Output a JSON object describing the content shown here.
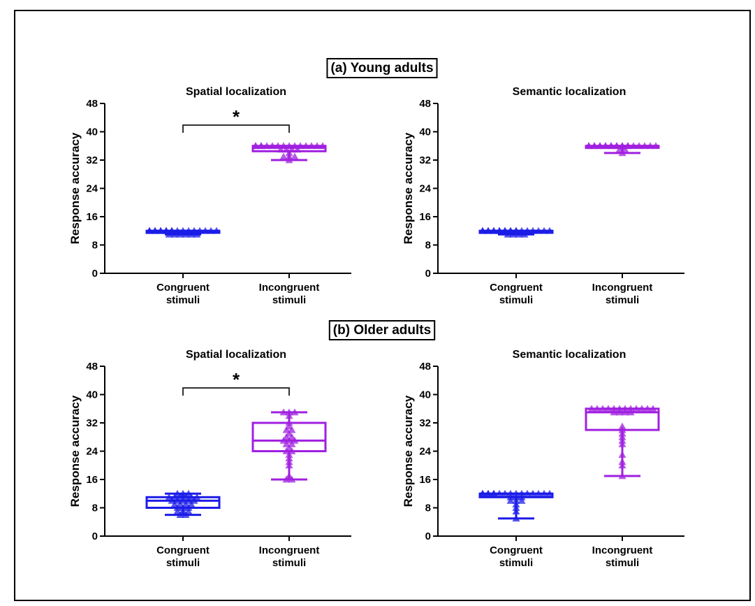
{
  "colors": {
    "congruent": "#1c1ce8",
    "incongruent": "#a020e0",
    "axis": "#000000",
    "bracket": "#333333"
  },
  "sections": [
    {
      "label": "(a) Young adults"
    },
    {
      "label": "(b) Older adults"
    }
  ],
  "chart_data": [
    {
      "type": "box",
      "section": "(a) Young adults",
      "title": "Spatial localization",
      "ylabel": "Response accuracy",
      "ylim": [
        0,
        48
      ],
      "yticks": [
        "0",
        "8",
        "16",
        "24",
        "32",
        "40",
        "48"
      ],
      "categories": [
        [
          "Congruent",
          "stimuli"
        ],
        [
          "Incongruent",
          "stimuli"
        ]
      ],
      "significance": "*",
      "series": [
        {
          "category": "Congruent stimuli",
          "min": 11,
          "q1": 11.5,
          "median": 12,
          "q3": 12,
          "max": 12,
          "points": [
            12,
            12,
            12,
            12,
            12,
            12,
            12,
            12,
            12,
            12,
            12,
            12,
            12,
            12,
            12,
            12,
            12,
            12,
            11,
            11,
            11,
            11,
            11,
            11
          ]
        },
        {
          "category": "Incongruent stimuli",
          "min": 32,
          "q1": 34.5,
          "median": 35.5,
          "q3": 36,
          "max": 36,
          "points": [
            36,
            36,
            36,
            36,
            36,
            36,
            36,
            36,
            36,
            36,
            36,
            36,
            36,
            36,
            36,
            35,
            35,
            35,
            35,
            34,
            33,
            33,
            33,
            32
          ]
        }
      ]
    },
    {
      "type": "box",
      "section": "(a) Young adults",
      "title": "Semantic localization",
      "ylabel": "Response accuracy",
      "ylim": [
        0,
        48
      ],
      "yticks": [
        "0",
        "8",
        "16",
        "24",
        "32",
        "40",
        "48"
      ],
      "categories": [
        [
          "Congruent",
          "stimuli"
        ],
        [
          "Incongruent",
          "stimuli"
        ]
      ],
      "series": [
        {
          "category": "Congruent stimuli",
          "min": 11,
          "q1": 11.5,
          "median": 12,
          "q3": 12,
          "max": 12,
          "points": [
            12,
            12,
            12,
            12,
            12,
            12,
            12,
            12,
            12,
            12,
            12,
            12,
            12,
            12,
            12,
            12,
            12,
            12,
            12,
            12,
            11,
            11,
            11,
            11
          ]
        },
        {
          "category": "Incongruent stimuli",
          "min": 34,
          "q1": 35.5,
          "median": 36,
          "q3": 36,
          "max": 36,
          "points": [
            36,
            36,
            36,
            36,
            36,
            36,
            36,
            36,
            36,
            36,
            36,
            36,
            36,
            36,
            36,
            36,
            36,
            36,
            36,
            36,
            36,
            35,
            35,
            34
          ]
        }
      ]
    },
    {
      "type": "box",
      "section": "(b) Older adults",
      "title": "Spatial localization",
      "ylabel": "Response accuracy",
      "ylim": [
        0,
        48
      ],
      "yticks": [
        "0",
        "8",
        "16",
        "24",
        "32",
        "40",
        "48"
      ],
      "categories": [
        [
          "Congruent",
          "stimuli"
        ],
        [
          "Incongruent",
          "stimuli"
        ]
      ],
      "significance": "*",
      "series": [
        {
          "category": "Congruent stimuli",
          "min": 6,
          "q1": 8,
          "median": 10,
          "q3": 11,
          "max": 12,
          "points": [
            12,
            12,
            12,
            11,
            11,
            11,
            11,
            11,
            11,
            10,
            10,
            10,
            10,
            10,
            9,
            9,
            9,
            9,
            8,
            8,
            8,
            7,
            7,
            7,
            6,
            6
          ]
        },
        {
          "category": "Incongruent stimuli",
          "min": 16,
          "q1": 24,
          "median": 27,
          "q3": 32,
          "max": 35,
          "points": [
            35,
            35,
            35,
            34,
            32,
            31,
            30,
            30,
            29,
            28,
            28,
            27,
            27,
            27,
            26,
            26,
            25,
            24,
            24,
            23,
            22,
            21,
            20,
            17,
            16,
            16
          ]
        }
      ]
    },
    {
      "type": "box",
      "section": "(b) Older adults",
      "title": "Semantic localization",
      "ylabel": "Response accuracy",
      "ylim": [
        0,
        48
      ],
      "yticks": [
        "0",
        "8",
        "16",
        "24",
        "32",
        "40",
        "48"
      ],
      "categories": [
        [
          "Congruent",
          "stimuli"
        ],
        [
          "Incongruent",
          "stimuli"
        ]
      ],
      "series": [
        {
          "category": "Congruent stimuli",
          "min": 5,
          "q1": 11,
          "median": 12,
          "q3": 12,
          "max": 12,
          "points": [
            12,
            12,
            12,
            12,
            12,
            12,
            12,
            12,
            12,
            12,
            12,
            12,
            12,
            12,
            12,
            12,
            11,
            11,
            11,
            10,
            10,
            10,
            9,
            8,
            7,
            5
          ]
        },
        {
          "category": "Incongruent stimuli",
          "min": 17,
          "q1": 30,
          "median": 35,
          "q3": 36,
          "max": 36,
          "points": [
            36,
            36,
            36,
            36,
            36,
            36,
            36,
            36,
            36,
            36,
            36,
            36,
            35,
            35,
            35,
            35,
            31,
            30,
            29,
            28,
            27,
            26,
            23,
            21,
            20,
            17
          ]
        }
      ]
    }
  ]
}
